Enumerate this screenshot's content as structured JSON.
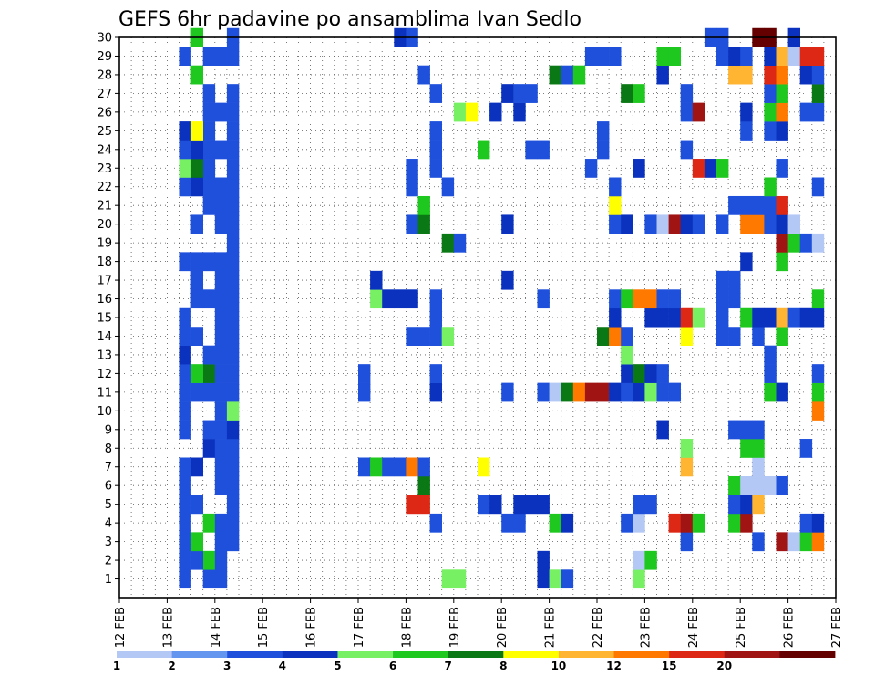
{
  "chart_data": {
    "type": "heatmap",
    "title": "GEFS 6hr padavine po ansamblima Ivan Sedlo",
    "xlabel": "",
    "ylabel": "",
    "x_tick_labels": [
      "12 FEB",
      "13 FEB",
      "14 FEB",
      "15 FEB",
      "16 FEB",
      "17 FEB",
      "18 FEB",
      "19 FEB",
      "20 FEB",
      "21 FEB",
      "22 FEB",
      "23 FEB",
      "24 FEB",
      "25 FEB",
      "26 FEB",
      "27 FEB"
    ],
    "y_tick_labels": [
      "1",
      "2",
      "3",
      "4",
      "5",
      "6",
      "7",
      "8",
      "9",
      "10",
      "11",
      "12",
      "13",
      "14",
      "15",
      "16",
      "17",
      "18",
      "19",
      "20",
      "21",
      "22",
      "23",
      "24",
      "25",
      "26",
      "27",
      "28",
      "29",
      "30"
    ],
    "y_range": [
      0,
      30
    ],
    "x_steps_per_day": 4,
    "x_steps_total": 60,
    "grid": true,
    "legend": {
      "placement": "bottom",
      "levels": [
        "1",
        "2",
        "3",
        "4",
        "5",
        "6",
        "7",
        "8",
        "10",
        "12",
        "15",
        "20"
      ],
      "colors": [
        "#b4c8f5",
        "#6496f0",
        "#1e50dc",
        "#0a32be",
        "#78f064",
        "#1ec81e",
        "#0a7814",
        "#ffff00",
        "#ffb432",
        "#ff7800",
        "#dc2814",
        "#a01414",
        "#640000"
      ]
    },
    "cells": [
      [
        7,
        1,
        2
      ],
      [
        7,
        2,
        5
      ],
      [
        7,
        4,
        5
      ],
      [
        7,
        8,
        3
      ],
      [
        7,
        9,
        2
      ],
      [
        7,
        11,
        2
      ],
      [
        7,
        12,
        6
      ],
      [
        7,
        13,
        2
      ],
      [
        7,
        16,
        2
      ],
      [
        7,
        18,
        2
      ],
      [
        7,
        21,
        2
      ],
      [
        7,
        22,
        2
      ],
      [
        7,
        23,
        2
      ],
      [
        7,
        24,
        2
      ],
      [
        7,
        25,
        2
      ],
      [
        7,
        26,
        2
      ],
      [
        7,
        27,
        2
      ],
      [
        7,
        29,
        2
      ],
      [
        6,
        2,
        2
      ],
      [
        6,
        3,
        5
      ],
      [
        6,
        5,
        2
      ],
      [
        6,
        7,
        3
      ],
      [
        6,
        11,
        2
      ],
      [
        6,
        12,
        5
      ],
      [
        6,
        14,
        2
      ],
      [
        6,
        16,
        2
      ],
      [
        6,
        17,
        2
      ],
      [
        6,
        18,
        2
      ],
      [
        6,
        20,
        2
      ],
      [
        6,
        22,
        3
      ],
      [
        6,
        23,
        6
      ],
      [
        6,
        24,
        3
      ],
      [
        6,
        25,
        7
      ],
      [
        6,
        28,
        5
      ],
      [
        6,
        30,
        5
      ],
      [
        5,
        1,
        2
      ],
      [
        5,
        2,
        2
      ],
      [
        5,
        3,
        2
      ],
      [
        5,
        4,
        2
      ],
      [
        5,
        5,
        2
      ],
      [
        5,
        6,
        2
      ],
      [
        5,
        7,
        2
      ],
      [
        5,
        9,
        2
      ],
      [
        5,
        10,
        2
      ],
      [
        5,
        11,
        2
      ],
      [
        5,
        12,
        2
      ],
      [
        5,
        13,
        3
      ],
      [
        5,
        14,
        2
      ],
      [
        5,
        15,
        2
      ],
      [
        5,
        18,
        2
      ],
      [
        5,
        22,
        2
      ],
      [
        5,
        23,
        4
      ],
      [
        5,
        24,
        2
      ],
      [
        5,
        25,
        3
      ],
      [
        5,
        29,
        2
      ],
      [
        8,
        1,
        2
      ],
      [
        8,
        2,
        2
      ],
      [
        8,
        3,
        2
      ],
      [
        8,
        4,
        2
      ],
      [
        8,
        6,
        2
      ],
      [
        8,
        7,
        2
      ],
      [
        8,
        8,
        2
      ],
      [
        8,
        9,
        2
      ],
      [
        8,
        10,
        2
      ],
      [
        8,
        11,
        2
      ],
      [
        8,
        12,
        2
      ],
      [
        8,
        13,
        2
      ],
      [
        8,
        14,
        2
      ],
      [
        8,
        15,
        2
      ],
      [
        8,
        16,
        2
      ],
      [
        8,
        17,
        2
      ],
      [
        8,
        18,
        2
      ],
      [
        8,
        20,
        2
      ],
      [
        8,
        21,
        2
      ],
      [
        8,
        22,
        2
      ],
      [
        8,
        24,
        2
      ],
      [
        8,
        26,
        2
      ],
      [
        8,
        29,
        2
      ],
      [
        9,
        3,
        2
      ],
      [
        9,
        4,
        2
      ],
      [
        9,
        5,
        2
      ],
      [
        9,
        6,
        2
      ],
      [
        9,
        7,
        2
      ],
      [
        9,
        8,
        2
      ],
      [
        9,
        9,
        3
      ],
      [
        9,
        10,
        4
      ],
      [
        9,
        11,
        2
      ],
      [
        9,
        12,
        2
      ],
      [
        9,
        13,
        2
      ],
      [
        9,
        14,
        2
      ],
      [
        9,
        15,
        2
      ],
      [
        9,
        16,
        2
      ],
      [
        9,
        17,
        2
      ],
      [
        9,
        18,
        2
      ],
      [
        9,
        19,
        2
      ],
      [
        9,
        20,
        2
      ],
      [
        9,
        21,
        2
      ],
      [
        9,
        22,
        2
      ],
      [
        9,
        23,
        2
      ],
      [
        9,
        24,
        2
      ],
      [
        9,
        25,
        2
      ],
      [
        9,
        26,
        2
      ],
      [
        9,
        27,
        2
      ],
      [
        9,
        29,
        2
      ],
      [
        9,
        30,
        2
      ],
      [
        20,
        7,
        2
      ],
      [
        20,
        11,
        2
      ],
      [
        20,
        12,
        2
      ],
      [
        21,
        7,
        5
      ],
      [
        21,
        16,
        4
      ],
      [
        21,
        17,
        3
      ],
      [
        22,
        7,
        2
      ],
      [
        22,
        16,
        3
      ],
      [
        23,
        7,
        2
      ],
      [
        23,
        16,
        3
      ],
      [
        23,
        30,
        3
      ],
      [
        24,
        7,
        9
      ],
      [
        24,
        16,
        3
      ],
      [
        24,
        5,
        10
      ],
      [
        24,
        14,
        2
      ],
      [
        24,
        20,
        2
      ],
      [
        24,
        22,
        2
      ],
      [
        24,
        23,
        2
      ],
      [
        24,
        30,
        2
      ],
      [
        25,
        5,
        10
      ],
      [
        25,
        6,
        6
      ],
      [
        25,
        7,
        2
      ],
      [
        25,
        14,
        2
      ],
      [
        25,
        20,
        6
      ],
      [
        25,
        21,
        5
      ],
      [
        25,
        28,
        2
      ],
      [
        26,
        4,
        2
      ],
      [
        26,
        11,
        3
      ],
      [
        26,
        12,
        2
      ],
      [
        26,
        14,
        2
      ],
      [
        26,
        15,
        2
      ],
      [
        26,
        16,
        2
      ],
      [
        26,
        23,
        2
      ],
      [
        26,
        24,
        2
      ],
      [
        26,
        25,
        2
      ],
      [
        26,
        27,
        2
      ],
      [
        27,
        1,
        4
      ],
      [
        27,
        14,
        4
      ],
      [
        27,
        19,
        6
      ],
      [
        27,
        22,
        2
      ],
      [
        28,
        1,
        4
      ],
      [
        28,
        19,
        2
      ],
      [
        28,
        26,
        4
      ],
      [
        29,
        26,
        7
      ],
      [
        30,
        5,
        2
      ],
      [
        30,
        7,
        7
      ],
      [
        30,
        24,
        5
      ],
      [
        31,
        5,
        3
      ],
      [
        31,
        26,
        3
      ],
      [
        32,
        4,
        2
      ],
      [
        32,
        11,
        2
      ],
      [
        32,
        17,
        3
      ],
      [
        32,
        20,
        3
      ],
      [
        32,
        27,
        3
      ],
      [
        33,
        4,
        2
      ],
      [
        33,
        5,
        3
      ],
      [
        33,
        26,
        3
      ],
      [
        33,
        27,
        2
      ],
      [
        34,
        5,
        3
      ],
      [
        34,
        24,
        2
      ],
      [
        34,
        27,
        2
      ],
      [
        35,
        1,
        3
      ],
      [
        35,
        2,
        3
      ],
      [
        35,
        5,
        3
      ],
      [
        35,
        11,
        2
      ],
      [
        35,
        16,
        2
      ],
      [
        35,
        24,
        2
      ],
      [
        36,
        1,
        4
      ],
      [
        36,
        4,
        5
      ],
      [
        36,
        11,
        13
      ],
      [
        36,
        28,
        6
      ],
      [
        37,
        1,
        2
      ],
      [
        37,
        4,
        3
      ],
      [
        37,
        11,
        6
      ],
      [
        37,
        28,
        2
      ],
      [
        38,
        11,
        9
      ],
      [
        38,
        28,
        5
      ],
      [
        39,
        11,
        11
      ],
      [
        39,
        23,
        2
      ],
      [
        39,
        29,
        2
      ],
      [
        40,
        11,
        11
      ],
      [
        40,
        14,
        6
      ],
      [
        40,
        24,
        2
      ],
      [
        40,
        25,
        2
      ],
      [
        40,
        29,
        2
      ],
      [
        41,
        11,
        3
      ],
      [
        41,
        14,
        9
      ],
      [
        41,
        15,
        3
      ],
      [
        41,
        16,
        2
      ],
      [
        41,
        20,
        2
      ],
      [
        41,
        21,
        7
      ],
      [
        41,
        22,
        2
      ],
      [
        41,
        29,
        2
      ],
      [
        42,
        4,
        2
      ],
      [
        42,
        11,
        2
      ],
      [
        42,
        12,
        3
      ],
      [
        42,
        13,
        4
      ],
      [
        42,
        14,
        2
      ],
      [
        42,
        16,
        5
      ],
      [
        42,
        20,
        3
      ],
      [
        42,
        27,
        6
      ],
      [
        43,
        1,
        4
      ],
      [
        43,
        2,
        13
      ],
      [
        43,
        4,
        13
      ],
      [
        43,
        5,
        2
      ],
      [
        43,
        11,
        3
      ],
      [
        43,
        12,
        6
      ],
      [
        43,
        16,
        9
      ],
      [
        43,
        23,
        3
      ],
      [
        43,
        27,
        5
      ],
      [
        44,
        2,
        5
      ],
      [
        44,
        5,
        2
      ],
      [
        44,
        11,
        4
      ],
      [
        44,
        12,
        3
      ],
      [
        44,
        15,
        3
      ],
      [
        44,
        16,
        9
      ],
      [
        44,
        20,
        2
      ],
      [
        45,
        9,
        3
      ],
      [
        45,
        11,
        2
      ],
      [
        45,
        12,
        2
      ],
      [
        45,
        15,
        3
      ],
      [
        45,
        16,
        2
      ],
      [
        45,
        20,
        13
      ],
      [
        45,
        28,
        3
      ],
      [
        45,
        29,
        3
      ],
      [
        45,
        29,
        5
      ],
      [
        46,
        4,
        10
      ],
      [
        46,
        11,
        2
      ],
      [
        46,
        15,
        3
      ],
      [
        46,
        16,
        2
      ],
      [
        46,
        20,
        11
      ],
      [
        46,
        29,
        5
      ],
      [
        47,
        3,
        2
      ],
      [
        47,
        4,
        11
      ],
      [
        47,
        7,
        8
      ],
      [
        47,
        8,
        4
      ],
      [
        47,
        14,
        7
      ],
      [
        47,
        15,
        10
      ],
      [
        47,
        20,
        3
      ],
      [
        47,
        24,
        2
      ],
      [
        47,
        26,
        2
      ],
      [
        47,
        27,
        2
      ],
      [
        48,
        4,
        5
      ],
      [
        48,
        15,
        4
      ],
      [
        48,
        20,
        2
      ],
      [
        48,
        23,
        10
      ],
      [
        48,
        26,
        11
      ],
      [
        49,
        23,
        3
      ],
      [
        49,
        30,
        2
      ],
      [
        50,
        14,
        2
      ],
      [
        50,
        15,
        2
      ],
      [
        50,
        16,
        2
      ],
      [
        50,
        17,
        2
      ],
      [
        50,
        20,
        2
      ],
      [
        50,
        23,
        5
      ],
      [
        50,
        29,
        2
      ],
      [
        50,
        30,
        2
      ],
      [
        51,
        4,
        5
      ],
      [
        51,
        5,
        2
      ],
      [
        51,
        6,
        5
      ],
      [
        51,
        9,
        2
      ],
      [
        51,
        14,
        2
      ],
      [
        51,
        16,
        2
      ],
      [
        51,
        17,
        2
      ],
      [
        51,
        21,
        2
      ],
      [
        51,
        28,
        8
      ],
      [
        51,
        29,
        3
      ],
      [
        52,
        4,
        11
      ],
      [
        52,
        5,
        3
      ],
      [
        52,
        6,
        13
      ],
      [
        52,
        8,
        5
      ],
      [
        52,
        9,
        2
      ],
      [
        52,
        15,
        5
      ],
      [
        52,
        18,
        3
      ],
      [
        52,
        20,
        9
      ],
      [
        52,
        21,
        2
      ],
      [
        52,
        25,
        2
      ],
      [
        52,
        26,
        3
      ],
      [
        52,
        28,
        8
      ],
      [
        52,
        29,
        2
      ],
      [
        53,
        3,
        2
      ],
      [
        53,
        5,
        8
      ],
      [
        53,
        6,
        13
      ],
      [
        53,
        7,
        13
      ],
      [
        53,
        8,
        5
      ],
      [
        53,
        9,
        2
      ],
      [
        53,
        14,
        2
      ],
      [
        53,
        15,
        3
      ],
      [
        53,
        20,
        9
      ],
      [
        53,
        21,
        2
      ],
      [
        53,
        30,
        12
      ],
      [
        54,
        6,
        13
      ],
      [
        54,
        11,
        5
      ],
      [
        54,
        12,
        2
      ],
      [
        54,
        13,
        2
      ],
      [
        54,
        15,
        3
      ],
      [
        54,
        20,
        2
      ],
      [
        54,
        21,
        2
      ],
      [
        54,
        22,
        5
      ],
      [
        54,
        25,
        2
      ],
      [
        54,
        26,
        5
      ],
      [
        54,
        27,
        2
      ],
      [
        54,
        28,
        10
      ],
      [
        54,
        29,
        3
      ],
      [
        54,
        30,
        12
      ],
      [
        55,
        3,
        11
      ],
      [
        55,
        6,
        2
      ],
      [
        55,
        11,
        3
      ],
      [
        55,
        14,
        5
      ],
      [
        55,
        15,
        8
      ],
      [
        55,
        18,
        5
      ],
      [
        55,
        19,
        11
      ],
      [
        55,
        20,
        3
      ],
      [
        55,
        21,
        10
      ],
      [
        55,
        23,
        2
      ],
      [
        55,
        25,
        3
      ],
      [
        55,
        26,
        9
      ],
      [
        55,
        27,
        5
      ],
      [
        55,
        28,
        9
      ],
      [
        55,
        29,
        8
      ],
      [
        56,
        3,
        13
      ],
      [
        56,
        15,
        2
      ],
      [
        56,
        19,
        5
      ],
      [
        56,
        20,
        13
      ],
      [
        56,
        29,
        13
      ],
      [
        56,
        30,
        3
      ],
      [
        57,
        3,
        5
      ],
      [
        57,
        4,
        2
      ],
      [
        57,
        15,
        3
      ],
      [
        57,
        19,
        2
      ],
      [
        57,
        26,
        2
      ],
      [
        57,
        28,
        3
      ],
      [
        57,
        29,
        10
      ],
      [
        57,
        8,
        2
      ],
      [
        58,
        3,
        9
      ],
      [
        58,
        4,
        3
      ],
      [
        58,
        10,
        9
      ],
      [
        58,
        11,
        5
      ],
      [
        58,
        12,
        2
      ],
      [
        58,
        15,
        3
      ],
      [
        58,
        16,
        5
      ],
      [
        58,
        19,
        13
      ],
      [
        58,
        22,
        2
      ],
      [
        58,
        26,
        2
      ],
      [
        58,
        27,
        6
      ],
      [
        58,
        28,
        2
      ],
      [
        58,
        29,
        10
      ]
    ]
  }
}
